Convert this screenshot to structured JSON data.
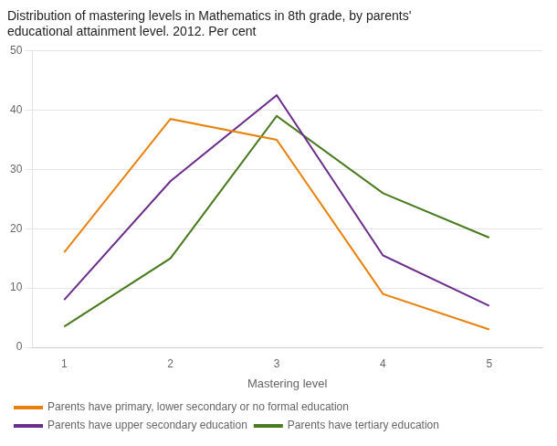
{
  "chart_data": {
    "type": "line",
    "title": [
      "Distribution of mastering levels in Mathematics in 8th grade, by parents'",
      "educational attainment level. 2012. Per cent"
    ],
    "xlabel": "Mastering level",
    "x": [
      1,
      2,
      3,
      4,
      5
    ],
    "series": [
      {
        "name": "Parents have primary, lower secondary or no formal education",
        "color": "#E8820C",
        "values": [
          16,
          38.5,
          35,
          9,
          3
        ]
      },
      {
        "name": "Parents have upper secondary education",
        "color": "#6B2D8B",
        "values": [
          8,
          28,
          42.5,
          15.5,
          7
        ]
      },
      {
        "name": "Parents have tertiary education",
        "color": "#4A7A1E",
        "values": [
          3.5,
          15,
          39,
          26,
          18.5
        ]
      }
    ],
    "xlim": [
      0.7,
      5.5
    ],
    "xticks": [
      1,
      2,
      3,
      4,
      5
    ],
    "ylim": [
      0,
      50
    ],
    "yticks": [
      0,
      10,
      20,
      30,
      40,
      50
    ],
    "grid": "y",
    "legend": "bottom"
  }
}
